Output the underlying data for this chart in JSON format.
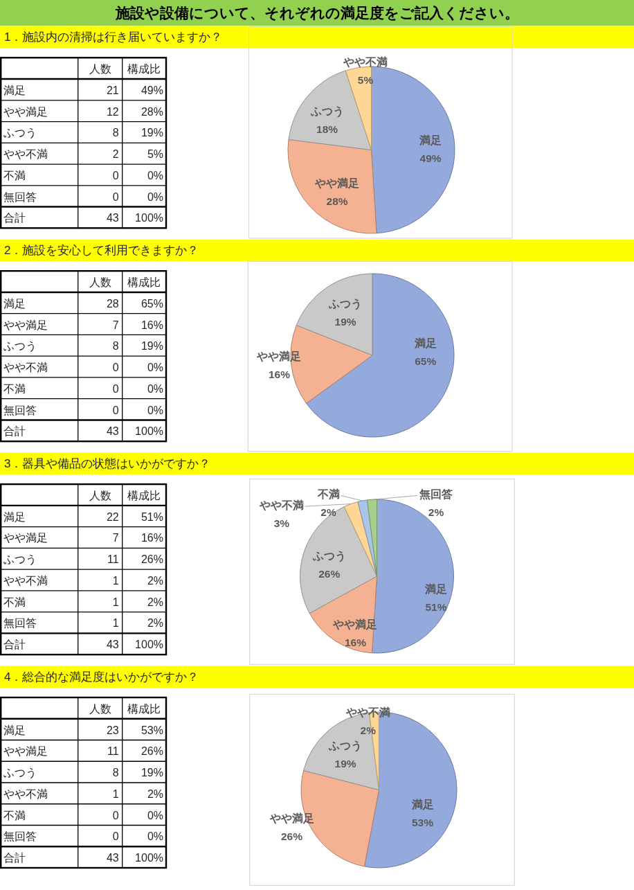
{
  "chart_data": [
    {
      "type": "pie",
      "title": "施設や設備について、それぞれの満足度をご記入ください。",
      "subtitle": "1．施設内の清掃は行き届いていますか？",
      "categories": [
        "満足",
        "やや満足",
        "ふつう",
        "やや不満",
        "不満",
        "無回答"
      ],
      "values": [
        49,
        28,
        18,
        5,
        0,
        0
      ],
      "colors": [
        "#94a9dc",
        "#f5b293",
        "#c9c9c9",
        "#fed795",
        null,
        null
      ],
      "value_labels": [
        "49%",
        "28%",
        "18%",
        "5%",
        null,
        null
      ],
      "annotations": [
        "人数",
        "構成比",
        "21",
        "49%",
        "12",
        "28%",
        "8",
        "19%",
        "2",
        "5%",
        "0",
        "0%",
        "0",
        "0%",
        "合計",
        "43",
        "100%"
      ]
    },
    {
      "type": "pie",
      "title": "2．施設を安心して利用できますか？",
      "categories": [
        "満足",
        "やや満足",
        "ふつう",
        "やや不満",
        "不満",
        "無回答"
      ],
      "values": [
        65,
        16,
        19,
        0,
        0,
        0
      ],
      "colors": [
        "#94a9dc",
        "#f5b293",
        "#c9c9c9",
        null,
        null,
        null
      ],
      "value_labels": [
        "65%",
        "16%",
        "19%",
        null,
        null,
        null
      ],
      "annotations": [
        "人数",
        "構成比",
        "28",
        "65%",
        "7",
        "16%",
        "8",
        "19%",
        "0",
        "0%",
        "0",
        "0%",
        "0",
        "0%",
        "合計",
        "43",
        "100%"
      ]
    },
    {
      "type": "pie",
      "title": "3．器具や備品の状態はいかがですか？",
      "categories": [
        "満足",
        "やや満足",
        "ふつう",
        "やや不満",
        "不満",
        "無回答"
      ],
      "values": [
        51,
        16,
        26,
        3,
        2,
        2
      ],
      "colors": [
        "#94a9dc",
        "#f5b293",
        "#c9c9c9",
        "#fed795",
        "#a9c5e8",
        "#a8d08d"
      ],
      "value_labels": [
        "51%",
        "16%",
        "26%",
        "3%",
        "2%",
        "2%"
      ],
      "annotations": [
        "人数",
        "構成比",
        "22",
        "51%",
        "7",
        "16%",
        "11",
        "26%",
        "1",
        "2%",
        "1",
        "2%",
        "1",
        "2%",
        "合計",
        "43",
        "100%"
      ]
    },
    {
      "type": "pie",
      "title": "4．総合的な満足度はいかがですか？",
      "categories": [
        "満足",
        "やや満足",
        "ふつう",
        "やや不満",
        "不満",
        "無回答"
      ],
      "values": [
        53,
        26,
        19,
        2,
        0,
        0
      ],
      "colors": [
        "#94a9dc",
        "#f5b293",
        "#c9c9c9",
        "#fed795",
        null,
        null
      ],
      "value_labels": [
        "53%",
        "26%",
        "19%",
        "2%",
        null,
        null
      ],
      "annotations": [
        "人数",
        "構成比",
        "23",
        "53%",
        "11",
        "26%",
        "8",
        "19%",
        "1",
        "2%",
        "0",
        "0%",
        "0",
        "0%",
        "合計",
        "43",
        "100%"
      ]
    }
  ]
}
